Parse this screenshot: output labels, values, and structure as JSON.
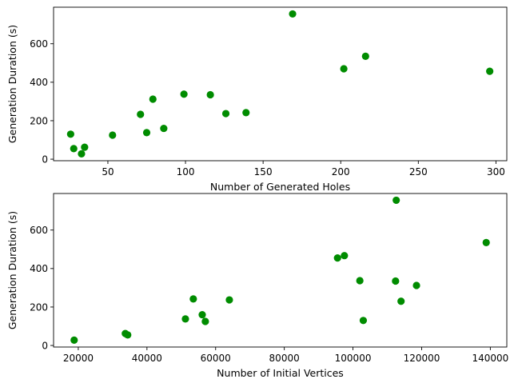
{
  "chart_data": [
    {
      "type": "scatter",
      "xlabel": "Number of Generated Holes",
      "ylabel": "Generation Duration (s)",
      "xlim": [
        15,
        307
      ],
      "ylim": [
        -8,
        790
      ],
      "xticks": [
        50,
        100,
        150,
        200,
        250,
        300
      ],
      "yticks": [
        0,
        200,
        400,
        600
      ],
      "grid": false,
      "marker_color": "#008c00",
      "points": [
        {
          "x": 26,
          "y": 130
        },
        {
          "x": 28,
          "y": 55
        },
        {
          "x": 33,
          "y": 28
        },
        {
          "x": 35,
          "y": 62
        },
        {
          "x": 53,
          "y": 125
        },
        {
          "x": 71,
          "y": 233
        },
        {
          "x": 75,
          "y": 138
        },
        {
          "x": 79,
          "y": 312
        },
        {
          "x": 86,
          "y": 160
        },
        {
          "x": 99,
          "y": 338
        },
        {
          "x": 116,
          "y": 335
        },
        {
          "x": 126,
          "y": 237
        },
        {
          "x": 139,
          "y": 242
        },
        {
          "x": 169,
          "y": 755
        },
        {
          "x": 202,
          "y": 470
        },
        {
          "x": 216,
          "y": 535
        },
        {
          "x": 296,
          "y": 457
        }
      ]
    },
    {
      "type": "scatter",
      "xlabel": "Number of Initial Vertices",
      "ylabel": "Generation Duration (s)",
      "xlim": [
        12800,
        144800
      ],
      "ylim": [
        -8,
        790
      ],
      "xticks": [
        20000,
        40000,
        60000,
        80000,
        100000,
        120000,
        140000
      ],
      "yticks": [
        0,
        200,
        400,
        600
      ],
      "grid": false,
      "marker_color": "#008c00",
      "points": [
        {
          "x": 18800,
          "y": 28
        },
        {
          "x": 33700,
          "y": 62
        },
        {
          "x": 34400,
          "y": 55
        },
        {
          "x": 51200,
          "y": 138
        },
        {
          "x": 53500,
          "y": 242
        },
        {
          "x": 56100,
          "y": 160
        },
        {
          "x": 57000,
          "y": 125
        },
        {
          "x": 64000,
          "y": 237
        },
        {
          "x": 95500,
          "y": 455
        },
        {
          "x": 97500,
          "y": 467
        },
        {
          "x": 102000,
          "y": 337
        },
        {
          "x": 103000,
          "y": 130
        },
        {
          "x": 112400,
          "y": 335
        },
        {
          "x": 112600,
          "y": 755
        },
        {
          "x": 114000,
          "y": 230
        },
        {
          "x": 118500,
          "y": 312
        },
        {
          "x": 138800,
          "y": 535
        }
      ]
    }
  ]
}
